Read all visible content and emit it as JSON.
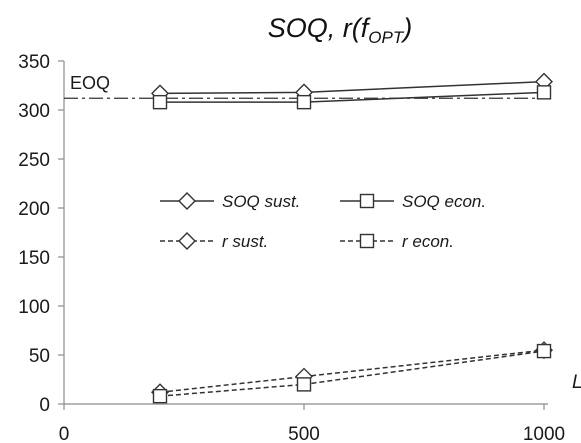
{
  "chart_data": {
    "type": "line",
    "title": {
      "main": "SOQ, r(f",
      "sub": "OPT",
      "tail": ")"
    },
    "xlabel": "L",
    "ylabel": "",
    "xlim": [
      0,
      1000
    ],
    "ylim": [
      0,
      350
    ],
    "x_ticks": [
      0,
      500,
      1000
    ],
    "y_ticks": [
      0,
      50,
      100,
      150,
      200,
      250,
      300,
      350
    ],
    "grid": false,
    "x": [
      200,
      500,
      1000
    ],
    "series": [
      {
        "name": "SOQ sust.",
        "values": [
          317,
          318,
          329
        ],
        "marker": "diamond",
        "line": "solid"
      },
      {
        "name": "SOQ econ.",
        "values": [
          308,
          308,
          318
        ],
        "marker": "square",
        "line": "solid"
      },
      {
        "name": "r sust.",
        "values": [
          12,
          28,
          55
        ],
        "marker": "diamond",
        "line": "dashed"
      },
      {
        "name": "r econ.",
        "values": [
          8,
          20,
          54
        ],
        "marker": "square",
        "line": "dashed"
      }
    ],
    "reference_line": {
      "label": "EOQ",
      "y": 312,
      "style": "dash-dot"
    },
    "legend_position": "center-left"
  }
}
